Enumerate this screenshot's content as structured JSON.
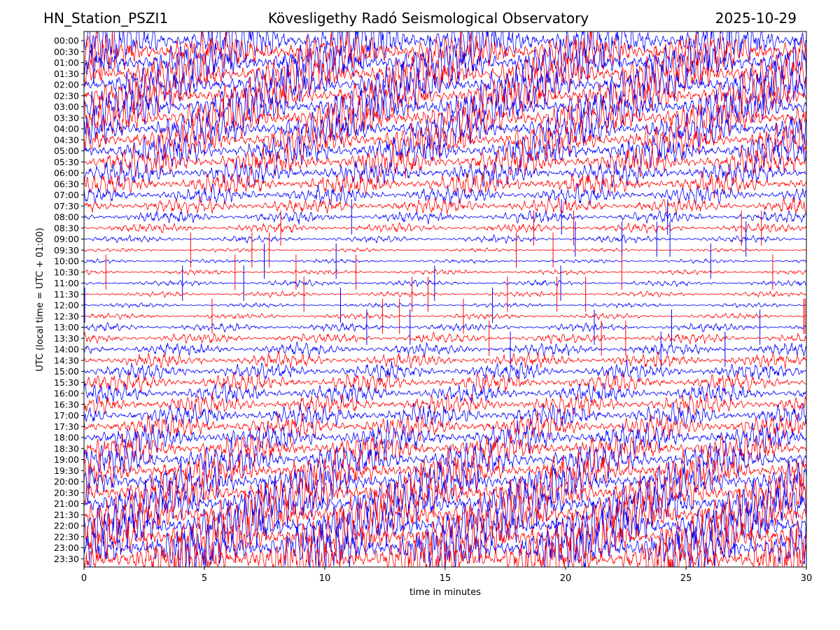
{
  "header": {
    "station": "HN_Station_PSZI1",
    "observatory": "Kövesligethy Radó Seismological Observatory",
    "date": "2025-10-29"
  },
  "chart_data": {
    "type": "line",
    "title": "Kövesligethy Radó Seismological Observatory",
    "xlabel": "time in minutes",
    "ylabel": "UTC (local time = UTC + 01:00)",
    "xlim": [
      0,
      30
    ],
    "x_ticks": [
      "0",
      "5",
      "10",
      "15",
      "20",
      "25",
      "30"
    ],
    "row_labels": [
      "00:00",
      "00:30",
      "01:00",
      "01:30",
      "02:00",
      "02:30",
      "03:00",
      "03:30",
      "04:00",
      "04:30",
      "05:00",
      "05:30",
      "06:00",
      "06:30",
      "07:00",
      "07:30",
      "08:00",
      "08:30",
      "09:00",
      "09:30",
      "10:00",
      "10:30",
      "11:00",
      "11:30",
      "12:00",
      "12:30",
      "13:00",
      "13:30",
      "14:00",
      "14:30",
      "15:00",
      "15:30",
      "16:00",
      "16:30",
      "17:00",
      "17:30",
      "18:00",
      "18:30",
      "19:00",
      "19:30",
      "20:00",
      "20:30",
      "21:00",
      "21:30",
      "22:00",
      "22:30",
      "23:00",
      "23:30"
    ],
    "trace_colors": [
      "#0000ff",
      "#ff0000"
    ],
    "relative_amplitude": [
      4.0,
      4.0,
      3.8,
      3.8,
      3.6,
      3.6,
      3.5,
      3.5,
      3.2,
      3.0,
      2.8,
      2.6,
      2.2,
      2.0,
      1.6,
      1.4,
      1.0,
      0.8,
      0.6,
      0.3,
      0.35,
      0.45,
      0.5,
      0.45,
      0.4,
      0.5,
      0.7,
      0.9,
      1.1,
      1.3,
      1.5,
      1.6,
      1.7,
      1.8,
      2.0,
      2.2,
      2.4,
      2.6,
      2.9,
      3.2,
      3.5,
      3.8,
      4.0,
      4.2,
      4.3,
      4.4,
      4.5,
      4.5
    ],
    "grid": false,
    "legend": "none"
  }
}
